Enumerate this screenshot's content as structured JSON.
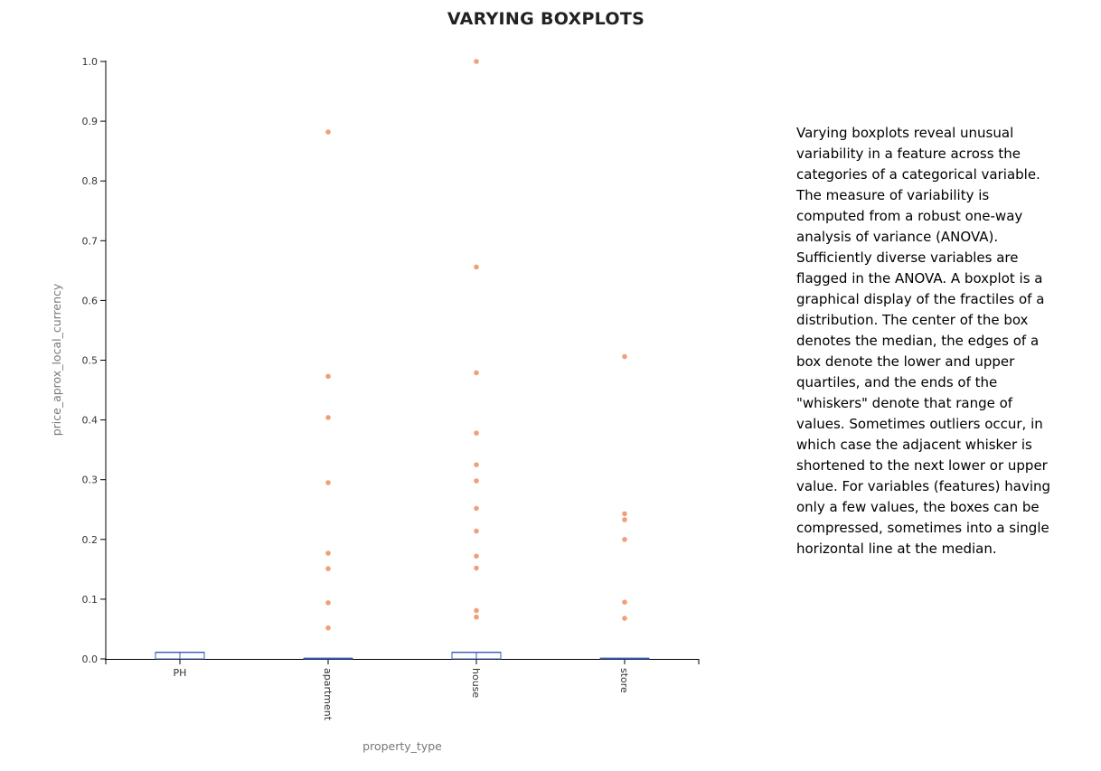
{
  "chart_data": {
    "type": "boxplot",
    "title": "VARYING BOXPLOTS",
    "xlabel": "property_type",
    "ylabel": "price_aprox_local_currency",
    "ylim": [
      0,
      1
    ],
    "y_ticks": [
      "0.0",
      "0.1",
      "0.2",
      "0.3",
      "0.4",
      "0.5",
      "0.6",
      "0.7",
      "0.8",
      "0.9",
      "1.0"
    ],
    "categories": [
      "PH",
      "apartment",
      "house",
      "store"
    ],
    "boxes": [
      {
        "category": "PH",
        "q1": 0,
        "median": 0.011,
        "q3": 0.011,
        "whisker_low": 0,
        "whisker_high": 0.011,
        "outliers": []
      },
      {
        "category": "apartment",
        "q1": 0,
        "median": 0.001,
        "q3": 0.001,
        "whisker_low": 0,
        "whisker_high": 0.001,
        "outliers": [
          0.882,
          0.473,
          0.404,
          0.295,
          0.177,
          0.151,
          0.094,
          0.052
        ]
      },
      {
        "category": "house",
        "q1": 0,
        "median": 0.011,
        "q3": 0.011,
        "whisker_low": 0,
        "whisker_high": 0.011,
        "outliers": [
          1.0,
          0.656,
          0.479,
          0.378,
          0.325,
          0.298,
          0.252,
          0.214,
          0.172,
          0.152,
          0.081,
          0.07
        ]
      },
      {
        "category": "store",
        "q1": 0,
        "median": 0.001,
        "q3": 0.001,
        "whisker_low": 0,
        "whisker_high": 0.001,
        "outliers": [
          0.506,
          0.243,
          0.233,
          0.2,
          0.095,
          0.068
        ]
      }
    ],
    "colors": {
      "box": "#3b5bb5",
      "outlier": "#f0a078",
      "axis": "#000000"
    },
    "grid": false
  },
  "description": "Varying boxplots reveal unusual variability in a feature across the categories of a categorical variable. The measure of variability is computed from a robust one-way analysis of variance (ANOVA). Sufficiently diverse variables are flagged in the ANOVA. A boxplot is a graphical display of the fractiles of a distribution. The center of the box denotes the median, the edges of a box denote the lower and upper quartiles, and the ends of the \"whiskers\" denote that range of values. Sometimes outliers occur, in which case the adjacent whisker is shortened to the next lower or upper value. For variables (features) having only a few values, the boxes can be compressed, sometimes into a single horizontal line at the median."
}
